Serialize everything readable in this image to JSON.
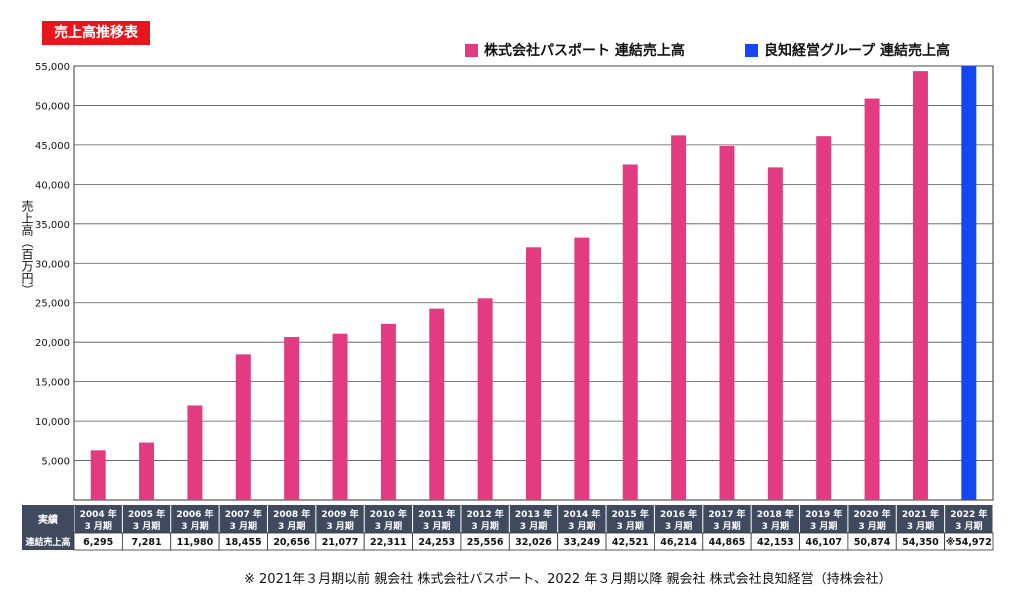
{
  "chart_data": {
    "type": "bar",
    "title": "売上高推移表",
    "ylabel": "売上高（百万円）",
    "ylim": [
      0,
      55000
    ],
    "yticks": [
      "5,000",
      "10,000",
      "15,000",
      "20,000",
      "25,000",
      "30,000",
      "35,000",
      "40,000",
      "45,000",
      "50,000",
      "55,000"
    ],
    "ytick_values": [
      5000,
      10000,
      15000,
      20000,
      25000,
      30000,
      35000,
      40000,
      45000,
      50000,
      55000
    ],
    "grid": true,
    "legend": [
      {
        "name": "株式会社パスポート 連結売上高",
        "color": "#e23b82"
      },
      {
        "name": "良知経営グループ 連結売上高",
        "color": "#1446f2"
      }
    ],
    "categories": [
      [
        "2004 年",
        "3 月期"
      ],
      [
        "2005 年",
        "3 月期"
      ],
      [
        "2006 年",
        "3 月期"
      ],
      [
        "2007 年",
        "3 月期"
      ],
      [
        "2008 年",
        "3 月期"
      ],
      [
        "2009 年",
        "3 月期"
      ],
      [
        "2010 年",
        "3 月期"
      ],
      [
        "2011 年",
        "3 月期"
      ],
      [
        "2012 年",
        "3 月期"
      ],
      [
        "2013 年",
        "3 月期"
      ],
      [
        "2014 年",
        "3 月期"
      ],
      [
        "2015 年",
        "3 月期"
      ],
      [
        "2016 年",
        "3 月期"
      ],
      [
        "2017 年",
        "3 月期"
      ],
      [
        "2018 年",
        "3 月期"
      ],
      [
        "2019 年",
        "3 月期"
      ],
      [
        "2020 年",
        "3 月期"
      ],
      [
        "2021 年",
        "3 月期"
      ],
      [
        "2022 年",
        "3 月期"
      ]
    ],
    "values": [
      6295,
      7281,
      11980,
      18455,
      20656,
      21077,
      22311,
      24253,
      25556,
      32026,
      33249,
      42521,
      46214,
      44865,
      42153,
      46107,
      50874,
      54350,
      54972
    ],
    "value_labels": [
      "6,295",
      "7,281",
      "11,980",
      "18,455",
      "20,656",
      "21,077",
      "22,311",
      "24,253",
      "25,556",
      "32,026",
      "33,249",
      "42,521",
      "46,214",
      "44,865",
      "42,153",
      "46,107",
      "50,874",
      "54,350",
      "※54,972"
    ],
    "series_index": [
      0,
      0,
      0,
      0,
      0,
      0,
      0,
      0,
      0,
      0,
      0,
      0,
      0,
      0,
      0,
      0,
      0,
      0,
      1
    ],
    "table": {
      "header_label": "実績",
      "row_label": "連結売上高"
    },
    "note": "※ 2021年３月期以前 親会社 株式会社パスポート、2022 年３月期以降 親会社 株式会社良知経営（持株会社）"
  }
}
